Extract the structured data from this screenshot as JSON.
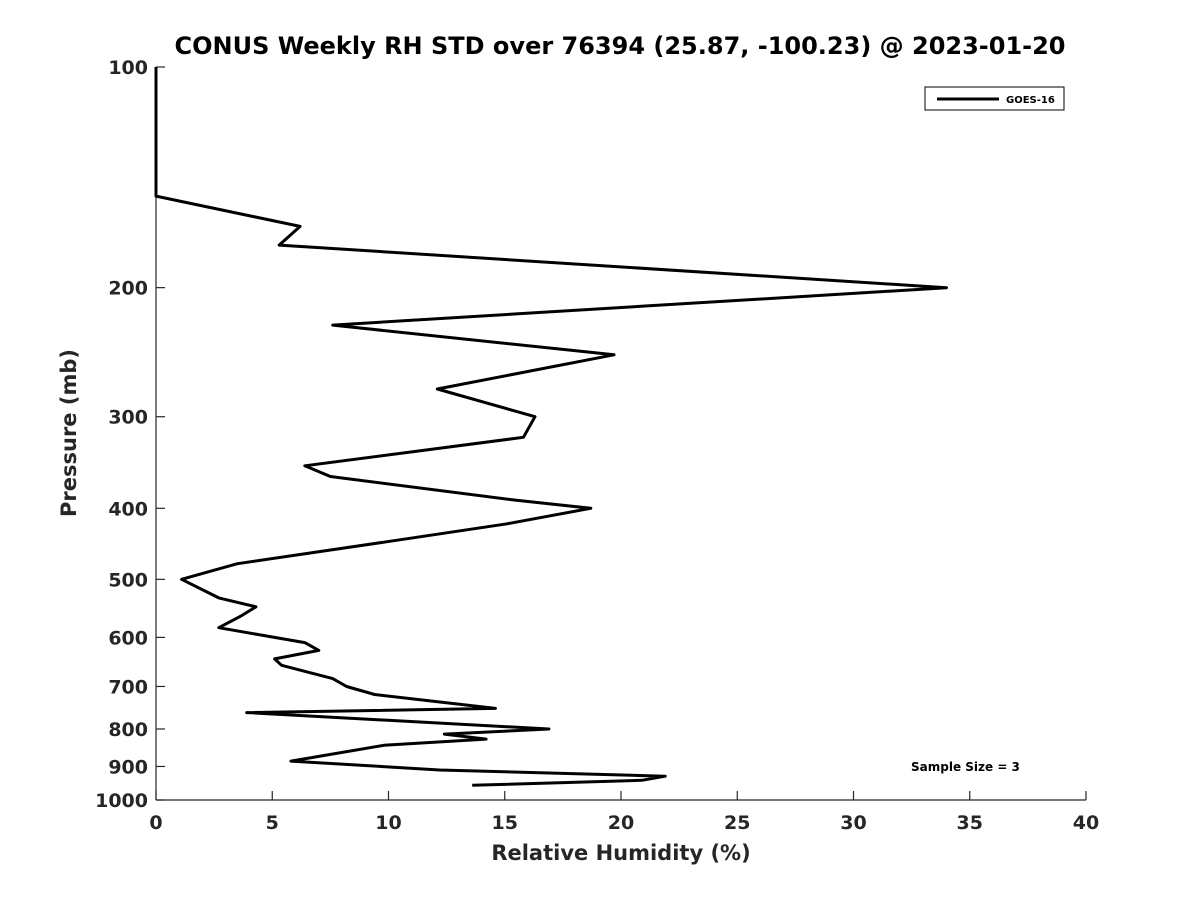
{
  "chart_data": {
    "type": "line",
    "title": "CONUS Weekly RH STD over 76394 (25.87, -100.23) @ 2023-01-20",
    "xlabel": "Relative Humidity (%)",
    "ylabel": "Pressure (mb)",
    "xlim": [
      0,
      40
    ],
    "ylim": [
      100,
      1000
    ],
    "yscale": "log",
    "y_reversed": true,
    "xticks": [
      0,
      5,
      10,
      15,
      20,
      25,
      30,
      35,
      40
    ],
    "yticks": [
      100,
      200,
      300,
      400,
      500,
      600,
      700,
      800,
      900,
      1000
    ],
    "grid": false,
    "legend": {
      "position": "top-right",
      "entries": [
        "GOES-16"
      ]
    },
    "annotation": "Sample Size = 3",
    "series": [
      {
        "name": "GOES-16",
        "color": "#000000",
        "x": [
          0,
          0,
          6.2,
          5.3,
          34.0,
          7.6,
          19.7,
          12.1,
          16.3,
          15.8,
          6.4,
          7.5,
          15.5,
          18.7,
          15.1,
          10.2,
          3.5,
          1.1,
          2.7,
          4.3,
          3.7,
          2.7,
          6.4,
          7.0,
          5.1,
          5.4,
          7.6,
          8.2,
          9.4,
          14.6,
          3.9,
          16.9,
          12.4,
          14.2,
          9.8,
          5.8,
          12.2,
          21.9,
          20.9,
          13.6
        ],
        "y": [
          100,
          150,
          165,
          175,
          200,
          225,
          247,
          275,
          300,
          320,
          350,
          362,
          390,
          400,
          420,
          443,
          476,
          500,
          530,
          545,
          560,
          582,
          610,
          625,
          642,
          655,
          683,
          700,
          718,
          750,
          760,
          800,
          813,
          826,
          842,
          885,
          910,
          928,
          940,
          955
        ]
      }
    ]
  }
}
